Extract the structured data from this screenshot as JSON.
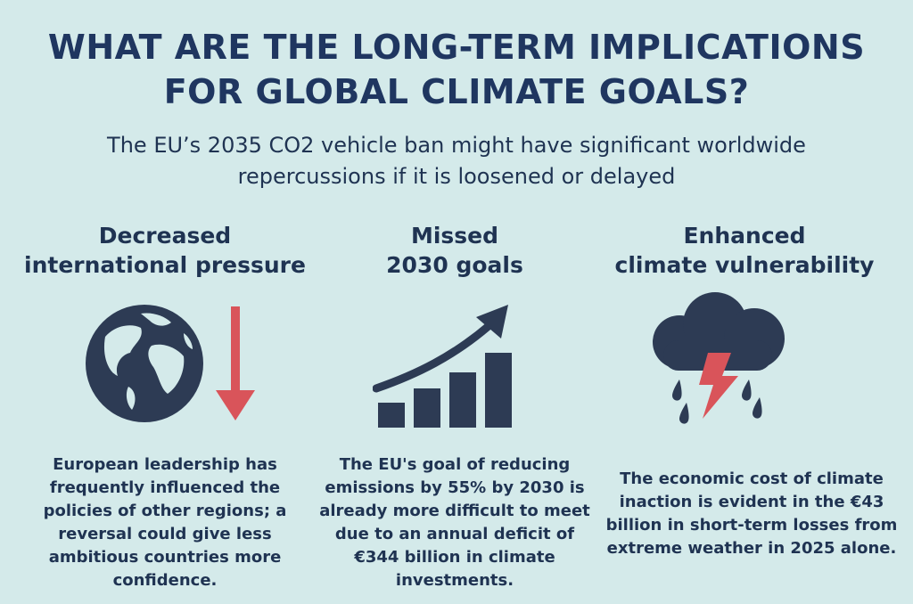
{
  "title": {
    "line1": "WHAT ARE THE LONG-TERM IMPLICATIONS",
    "line2": "FOR GLOBAL CLIMATE GOALS?"
  },
  "subtitle": {
    "line1": "The EU’s 2035 CO2 vehicle ban might have significant worldwide",
    "line2": "repercussions if it is loosened or delayed"
  },
  "columns": [
    {
      "heading": [
        "Decreased",
        "international pressure"
      ],
      "icon": "globe-with-down-arrow-icon",
      "text": [
        "European leadership has",
        "frequently influenced the",
        "policies of other regions; a",
        "reversal could give less",
        "ambitious countries more",
        "confidence."
      ]
    },
    {
      "heading": [
        "Missed",
        "2030 goals"
      ],
      "icon": "rising-bar-chart-icon",
      "text": [
        "The EU's goal of reducing",
        "emissions by 55% by 2030 is",
        "already more difficult to meet",
        "due to an annual deficit of",
        "€344 billion in climate",
        "investments."
      ]
    },
    {
      "heading": [
        "Enhanced",
        "climate vulnerability"
      ],
      "icon": "storm-cloud-icon",
      "text": [
        "The economic cost of climate",
        "inaction is evident in the €43",
        "billion in short-term losses from",
        "extreme weather in 2025 alone."
      ]
    }
  ],
  "colors": {
    "background": "#d4eaea",
    "navy": "#2d3b54",
    "accent_red": "#d9545a"
  }
}
